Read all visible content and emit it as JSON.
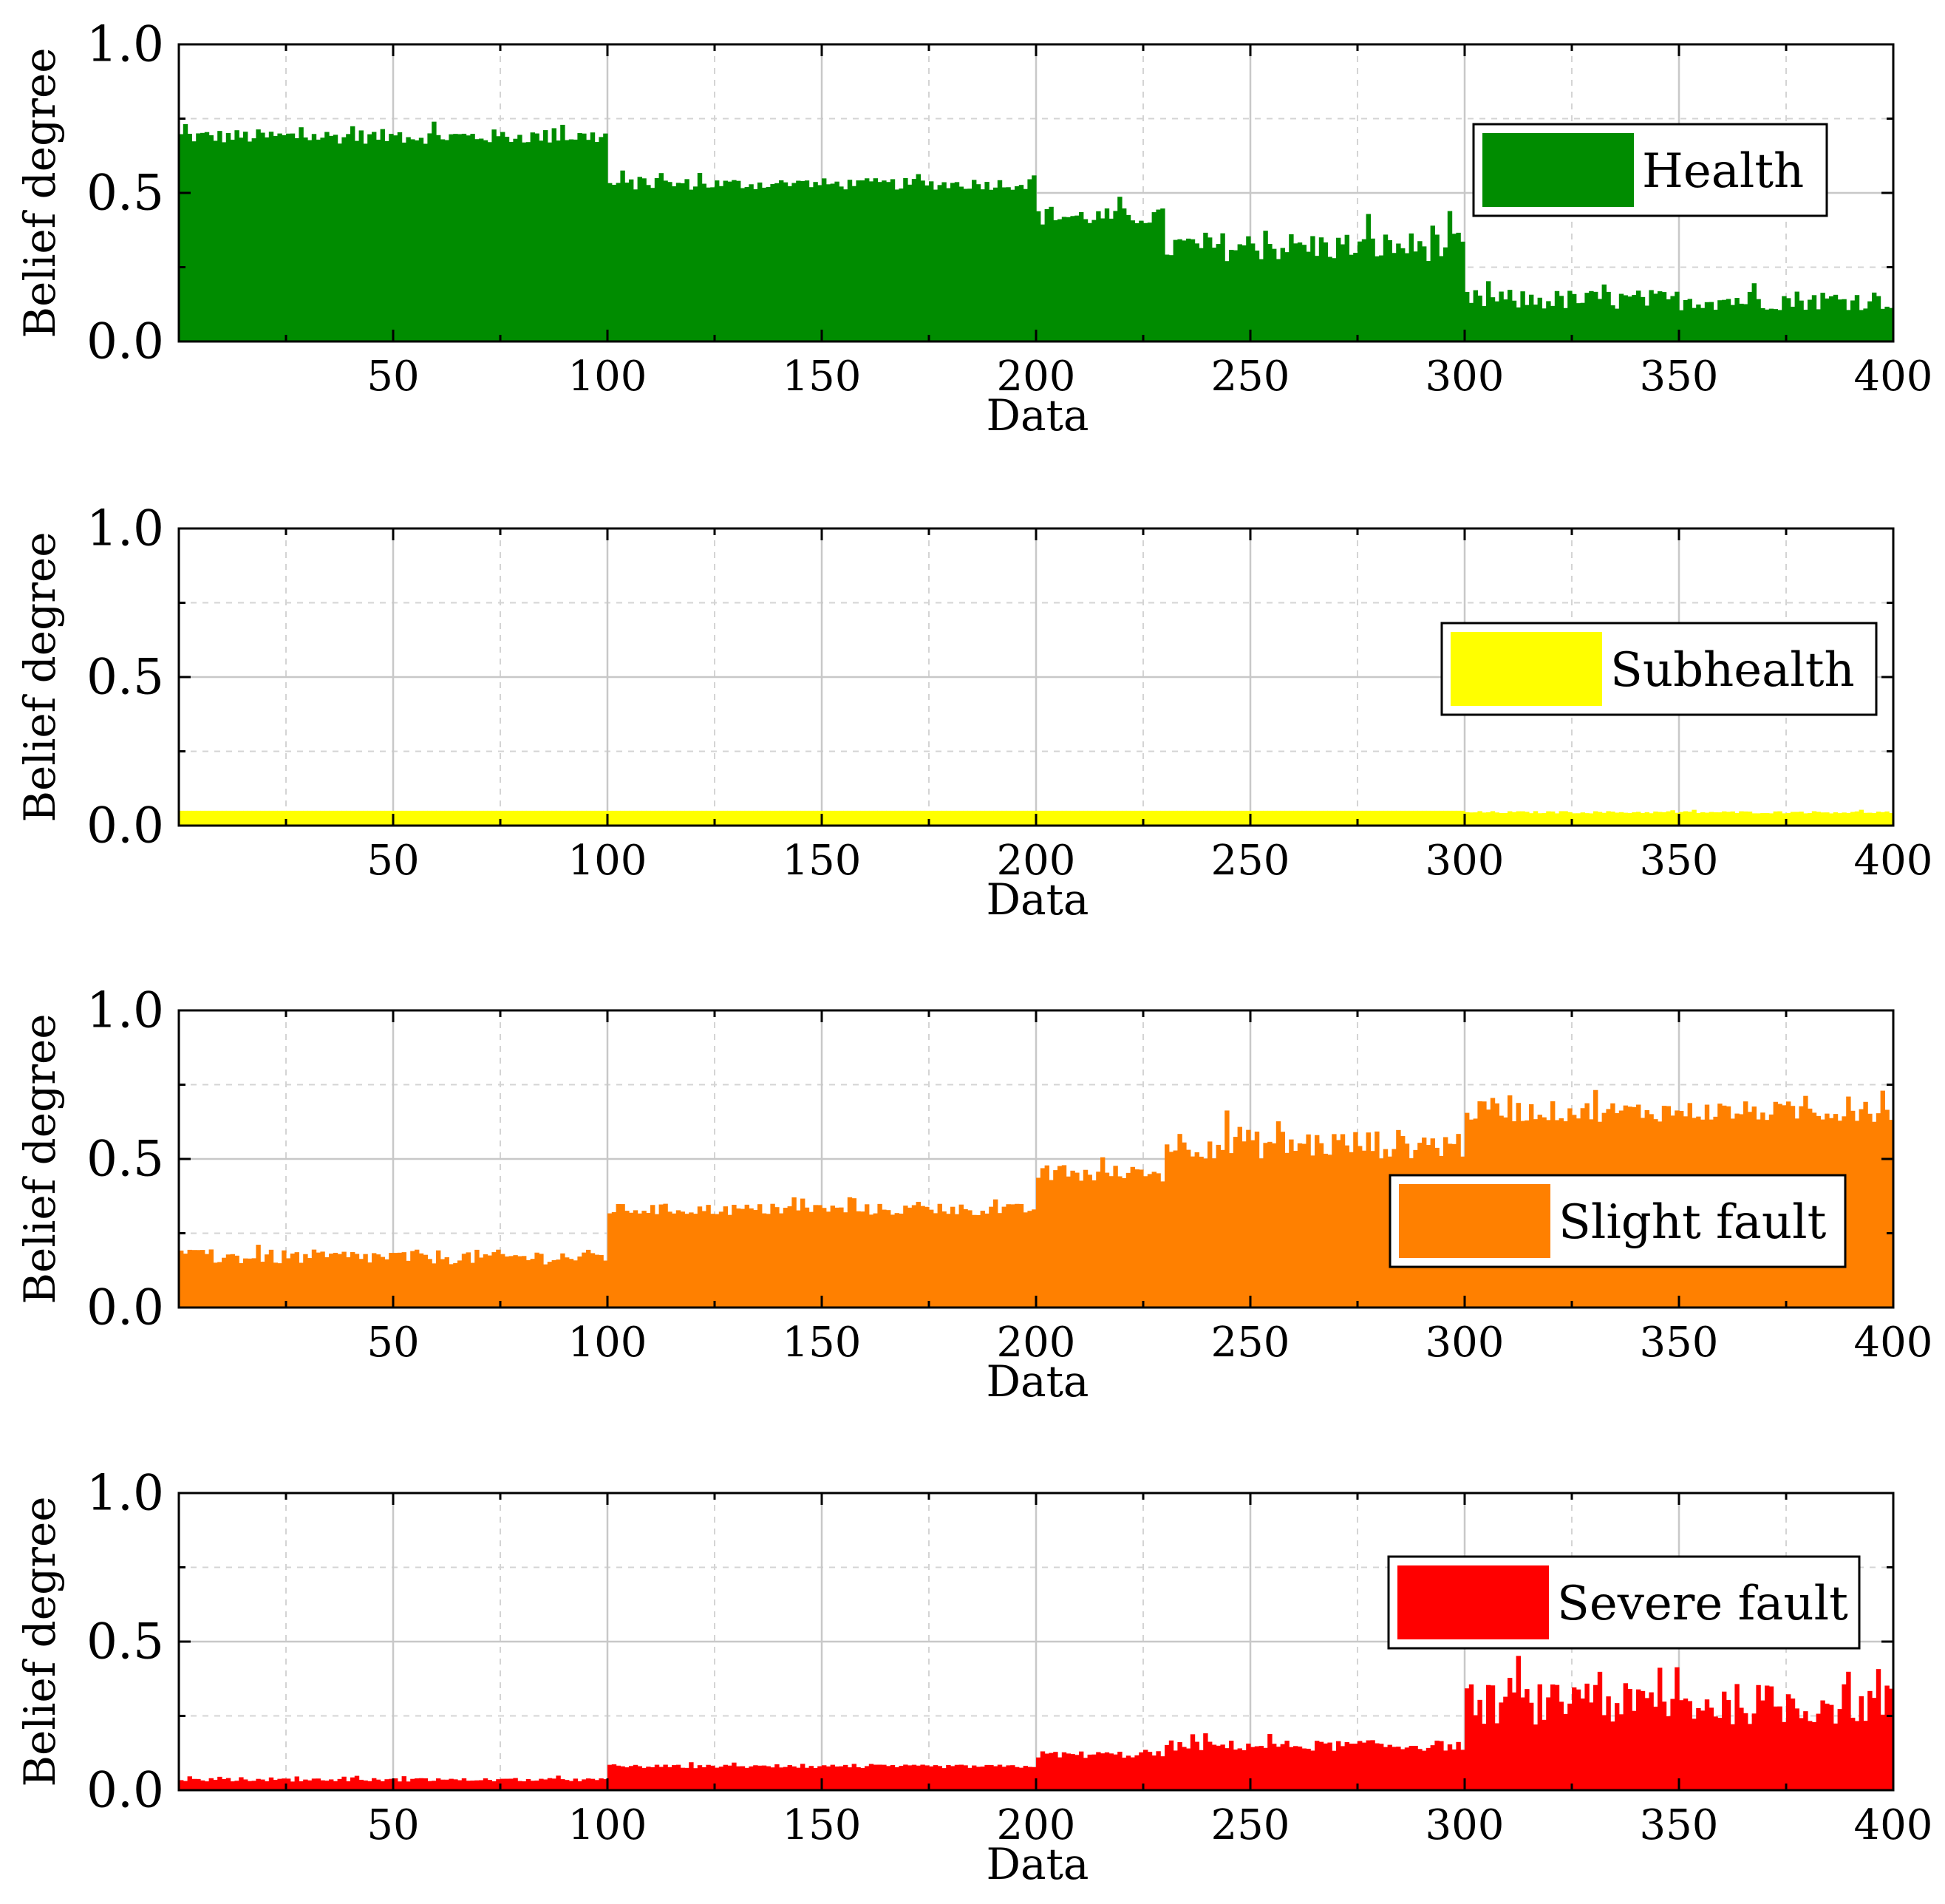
{
  "chart_data": [
    {
      "type": "bar",
      "title": "",
      "xlabel": "Data",
      "ylabel": "Belief degree",
      "xlim": [
        0,
        400
      ],
      "ylim": [
        0,
        1
      ],
      "xticks": [
        50,
        100,
        150,
        200,
        250,
        300,
        350,
        400
      ],
      "xtick_labels": [
        "50",
        "100",
        "150",
        "200",
        "250",
        "300",
        "350",
        "400"
      ],
      "yticks": [
        0,
        0.5,
        1
      ],
      "ytick_labels": [
        "0.0",
        "0.5",
        "1.0"
      ],
      "legend": {
        "label": "Health",
        "color": "#008c00",
        "placement": "top-right"
      },
      "segments": [
        {
          "x_range": [
            1,
            100
          ],
          "mean": 0.69,
          "variation": 0.025
        },
        {
          "x_range": [
            101,
            200
          ],
          "mean": 0.53,
          "variation": 0.02
        },
        {
          "x_range": [
            201,
            230
          ],
          "mean": 0.42,
          "variation": 0.03
        },
        {
          "x_range": [
            231,
            300
          ],
          "mean": 0.32,
          "variation": 0.05
        },
        {
          "x_range": [
            301,
            400
          ],
          "mean": 0.14,
          "variation": 0.035
        }
      ]
    },
    {
      "type": "bar",
      "title": "",
      "xlabel": "Data",
      "ylabel": "Belief degree",
      "xlim": [
        0,
        400
      ],
      "ylim": [
        0,
        1
      ],
      "xticks": [
        50,
        100,
        150,
        200,
        250,
        300,
        350,
        400
      ],
      "xtick_labels": [
        "50",
        "100",
        "150",
        "200",
        "250",
        "300",
        "350",
        "400"
      ],
      "yticks": [
        0,
        0.5,
        1
      ],
      "ytick_labels": [
        "0.0",
        "0.5",
        "1.0"
      ],
      "legend": {
        "label": "Subhealth",
        "color": "#ffff00",
        "placement": "right"
      },
      "segments": [
        {
          "x_range": [
            1,
            300
          ],
          "mean": 0.05,
          "variation": 0.0
        },
        {
          "x_range": [
            301,
            400
          ],
          "mean": 0.045,
          "variation": 0.004
        }
      ]
    },
    {
      "type": "bar",
      "title": "",
      "xlabel": "Data",
      "ylabel": "Belief degree",
      "xlim": [
        0,
        400
      ],
      "ylim": [
        0,
        1
      ],
      "xticks": [
        50,
        100,
        150,
        200,
        250,
        300,
        350,
        400
      ],
      "xtick_labels": [
        "50",
        "100",
        "150",
        "200",
        "250",
        "300",
        "350",
        "400"
      ],
      "yticks": [
        0,
        0.5,
        1
      ],
      "ytick_labels": [
        "0.0",
        "0.5",
        "1.0"
      ],
      "legend": {
        "label": "Slight fault",
        "color": "#ff8000",
        "placement": "right"
      },
      "segments": [
        {
          "x_range": [
            1,
            100
          ],
          "mean": 0.17,
          "variation": 0.025
        },
        {
          "x_range": [
            101,
            200
          ],
          "mean": 0.33,
          "variation": 0.02
        },
        {
          "x_range": [
            201,
            230
          ],
          "mean": 0.45,
          "variation": 0.03
        },
        {
          "x_range": [
            231,
            300
          ],
          "mean": 0.55,
          "variation": 0.05
        },
        {
          "x_range": [
            301,
            400
          ],
          "mean": 0.66,
          "variation": 0.035
        }
      ]
    },
    {
      "type": "bar",
      "title": "",
      "xlabel": "Data",
      "ylabel": "Belief degree",
      "xlim": [
        0,
        400
      ],
      "ylim": [
        0,
        1
      ],
      "xticks": [
        50,
        100,
        150,
        200,
        250,
        300,
        350,
        400
      ],
      "xtick_labels": [
        "50",
        "100",
        "150",
        "200",
        "250",
        "300",
        "350",
        "400"
      ],
      "yticks": [
        0,
        0.5,
        1
      ],
      "ytick_labels": [
        "0.0",
        "0.5",
        "1.0"
      ],
      "legend": {
        "label": "Severe fault",
        "color": "#ff0000",
        "placement": "top-right"
      },
      "segments": [
        {
          "x_range": [
            1,
            100
          ],
          "mean": 0.035,
          "variation": 0.006
        },
        {
          "x_range": [
            101,
            200
          ],
          "mean": 0.08,
          "variation": 0.006
        },
        {
          "x_range": [
            201,
            230
          ],
          "mean": 0.12,
          "variation": 0.012
        },
        {
          "x_range": [
            231,
            300
          ],
          "mean": 0.15,
          "variation": 0.018
        },
        {
          "x_range": [
            301,
            400
          ],
          "mean": 0.29,
          "variation": 0.07
        }
      ]
    }
  ]
}
